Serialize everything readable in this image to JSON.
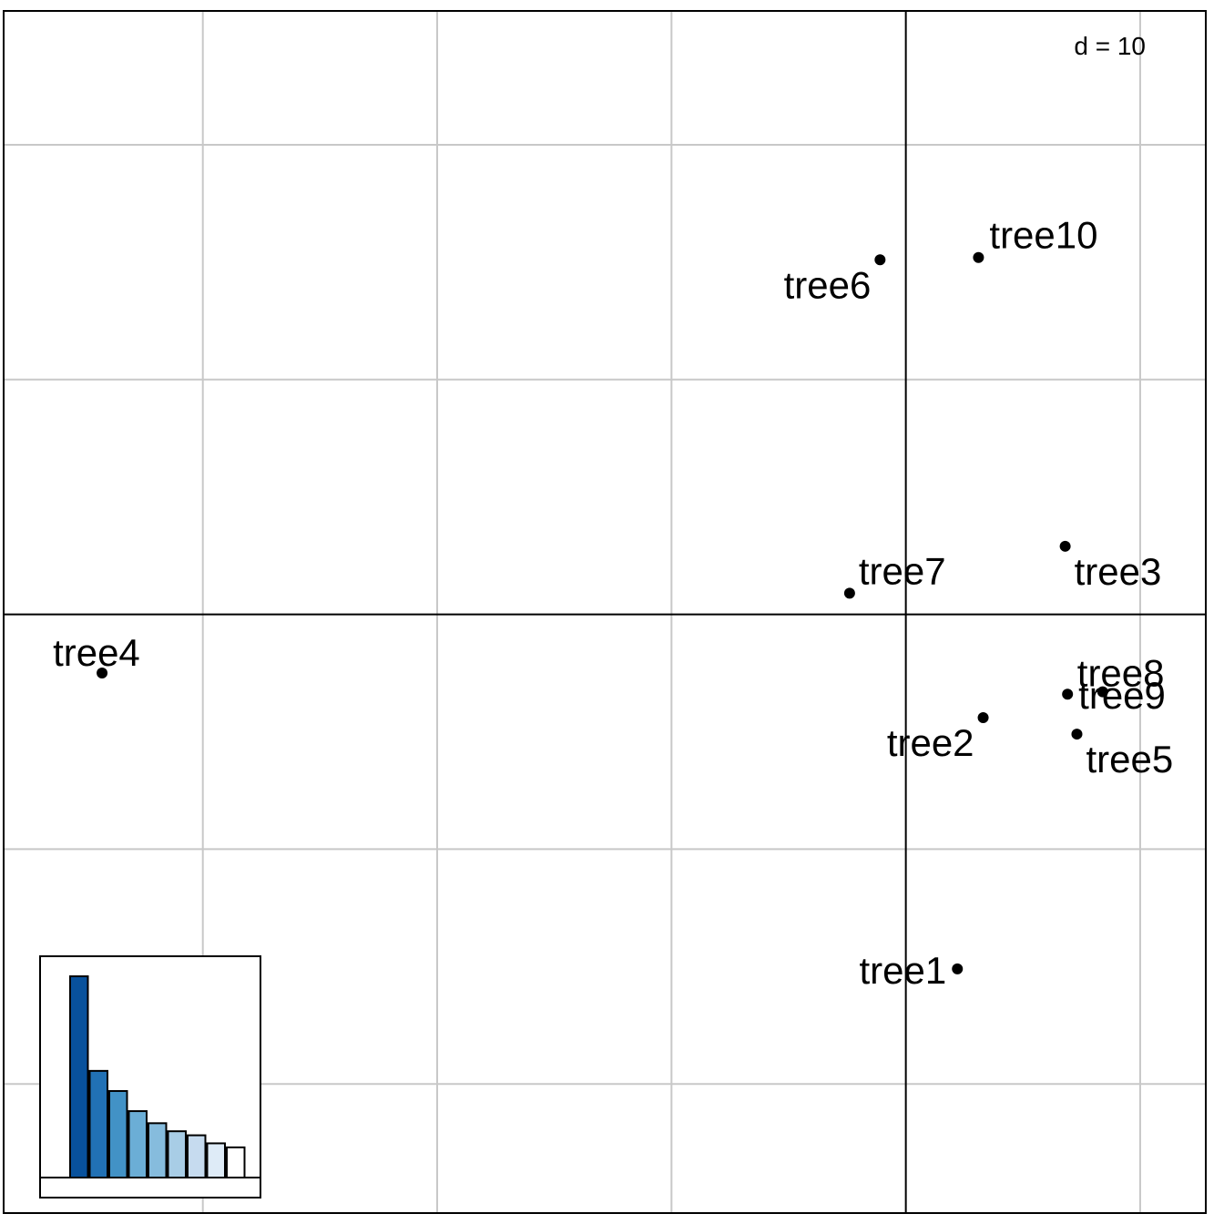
{
  "chart_data": {
    "type": "scatter",
    "scale_label": "d = 10",
    "grid_step": 10,
    "xlim": [
      -38.5,
      12.8
    ],
    "ylim": [
      -25.5,
      25.7
    ],
    "points": [
      {
        "name": "tree1",
        "x": 2.2,
        "y": -15.1
      },
      {
        "name": "tree2",
        "x": 3.3,
        "y": -4.4
      },
      {
        "name": "tree3",
        "x": 6.8,
        "y": 2.9
      },
      {
        "name": "tree4",
        "x": -34.3,
        "y": -2.5
      },
      {
        "name": "tree5",
        "x": 7.3,
        "y": -5.1
      },
      {
        "name": "tree6",
        "x": -1.1,
        "y": 15.1
      },
      {
        "name": "tree7",
        "x": -2.4,
        "y": 0.9
      },
      {
        "name": "tree8",
        "x": 8.4,
        "y": -3.3
      },
      {
        "name": "tree9",
        "x": 6.9,
        "y": -3.4
      },
      {
        "name": "tree10",
        "x": 3.1,
        "y": 15.2
      }
    ],
    "eigenvalues": {
      "values": [
        100,
        53,
        43,
        33,
        27,
        23,
        21,
        17,
        15
      ],
      "colors": [
        "#08519c",
        "#2171b5",
        "#4292c6",
        "#6baed6",
        "#86bcdd",
        "#a8cde6",
        "#c6dbef",
        "#deebf7",
        "#ffffff"
      ]
    }
  }
}
